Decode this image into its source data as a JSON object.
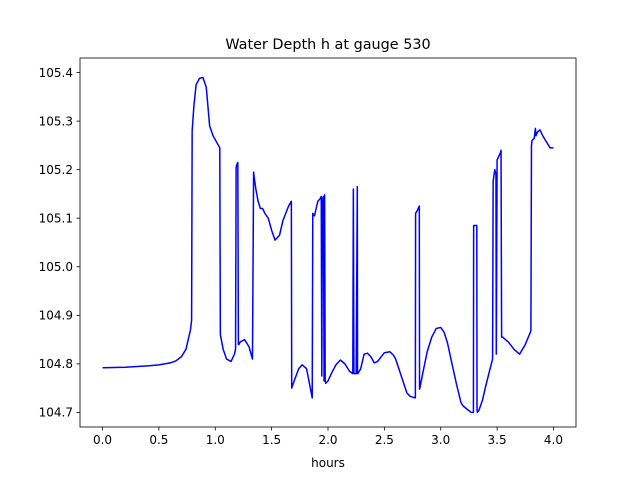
{
  "chart_data": {
    "type": "line",
    "title": "Water Depth h at gauge 530",
    "xlabel": "hours",
    "ylabel": "",
    "xlim": [
      -0.2,
      4.2
    ],
    "ylim": [
      104.67,
      105.43
    ],
    "xticks": [
      0.0,
      0.5,
      1.0,
      1.5,
      2.0,
      2.5,
      3.0,
      3.5,
      4.0
    ],
    "xtick_labels": [
      "0.0",
      "0.5",
      "1.0",
      "1.5",
      "2.0",
      "2.5",
      "3.0",
      "3.5",
      "4.0"
    ],
    "yticks": [
      104.7,
      104.8,
      104.9,
      105.0,
      105.1,
      105.2,
      105.3,
      105.4
    ],
    "ytick_labels": [
      "104.7",
      "104.8",
      "104.9",
      "105.0",
      "105.1",
      "105.2",
      "105.3",
      "105.4"
    ],
    "grid": false,
    "series": [
      {
        "color": "#0000ff",
        "x": [
          0.0,
          0.2,
          0.4,
          0.5,
          0.6,
          0.65,
          0.7,
          0.74,
          0.78,
          0.79,
          0.795,
          0.81,
          0.83,
          0.86,
          0.89,
          0.92,
          0.95,
          0.98,
          1.04,
          1.045,
          1.07,
          1.1,
          1.14,
          1.17,
          1.18,
          1.185,
          1.19,
          1.2,
          1.205,
          1.21,
          1.22,
          1.26,
          1.3,
          1.33,
          1.34,
          1.345,
          1.36,
          1.38,
          1.4,
          1.42,
          1.44,
          1.47,
          1.5,
          1.53,
          1.57,
          1.6,
          1.65,
          1.675,
          1.678,
          1.7,
          1.74,
          1.77,
          1.81,
          1.86,
          1.865,
          1.88,
          1.895,
          1.91,
          1.93,
          1.94,
          1.945,
          1.95,
          1.96,
          1.965,
          1.97,
          1.975,
          1.98,
          2.0,
          2.03,
          2.07,
          2.11,
          2.15,
          2.19,
          2.22,
          2.225,
          2.23,
          2.24,
          2.25,
          2.26,
          2.262,
          2.265,
          2.29,
          2.32,
          2.35,
          2.38,
          2.41,
          2.44,
          2.5,
          2.55,
          2.58,
          2.6,
          2.65,
          2.7,
          2.73,
          2.775,
          2.777,
          2.79,
          2.8,
          2.81,
          2.812,
          2.815,
          2.84,
          2.88,
          2.92,
          2.96,
          3.0,
          3.03,
          3.06,
          3.1,
          3.14,
          3.18,
          3.2,
          3.27,
          3.29,
          3.292,
          3.32,
          3.322,
          3.325,
          3.34,
          3.37,
          3.4,
          3.43,
          3.46,
          3.465,
          3.47,
          3.48,
          3.49,
          3.493,
          3.5,
          3.52,
          3.53,
          3.535,
          3.54,
          3.55,
          3.6,
          3.65,
          3.7,
          3.75,
          3.8,
          3.805,
          3.81,
          3.83,
          3.84,
          3.845,
          3.86,
          3.88,
          3.9,
          3.93,
          3.97,
          4.0
        ],
        "y": [
          104.792,
          104.793,
          104.796,
          104.798,
          104.802,
          104.806,
          104.815,
          104.83,
          104.87,
          104.89,
          105.28,
          105.33,
          105.375,
          105.388,
          105.39,
          105.37,
          105.29,
          105.27,
          105.245,
          104.86,
          104.83,
          104.81,
          104.805,
          104.82,
          104.83,
          105.205,
          105.21,
          105.215,
          104.84,
          104.84,
          104.845,
          104.85,
          104.835,
          104.81,
          105.195,
          105.185,
          105.16,
          105.135,
          105.12,
          105.12,
          105.11,
          105.1,
          105.075,
          105.055,
          105.065,
          105.095,
          105.125,
          105.135,
          104.75,
          104.765,
          104.79,
          104.798,
          104.79,
          104.73,
          105.11,
          105.105,
          105.12,
          105.135,
          105.14,
          105.145,
          104.775,
          105.14,
          105.145,
          104.765,
          105.148,
          104.765,
          104.76,
          104.765,
          104.78,
          104.798,
          104.808,
          104.8,
          104.785,
          104.78,
          105.16,
          104.78,
          104.78,
          104.78,
          105.165,
          104.78,
          104.78,
          104.79,
          104.82,
          104.822,
          104.815,
          104.802,
          104.805,
          104.823,
          104.825,
          104.818,
          104.81,
          104.775,
          104.74,
          104.733,
          104.73,
          105.11,
          105.115,
          105.12,
          105.125,
          104.748,
          104.75,
          104.78,
          104.825,
          104.855,
          104.873,
          104.875,
          104.865,
          104.843,
          104.8,
          104.758,
          104.72,
          104.713,
          104.7,
          104.7,
          105.085,
          105.085,
          104.705,
          104.7,
          104.705,
          104.725,
          104.755,
          104.783,
          104.81,
          105.175,
          105.185,
          105.2,
          105.19,
          104.82,
          105.22,
          105.23,
          105.235,
          105.24,
          104.855,
          104.855,
          104.845,
          104.83,
          104.82,
          104.84,
          104.868,
          105.25,
          105.26,
          105.265,
          105.285,
          105.27,
          105.278,
          105.282,
          105.272,
          105.26,
          105.245,
          105.245
        ]
      }
    ]
  }
}
